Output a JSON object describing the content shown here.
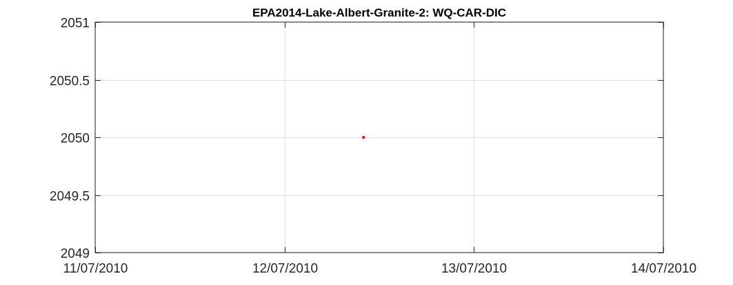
{
  "chart_data": {
    "type": "scatter",
    "title": "EPA2014-Lake-Albert-Granite-2: WQ-CAR-DIC",
    "xlabel": "",
    "ylabel": "",
    "x_type": "date",
    "xlim": [
      "11/07/2010",
      "14/07/2010"
    ],
    "ylim": [
      2049,
      2051
    ],
    "x_ticks": [
      "11/07/2010",
      "12/07/2010",
      "13/07/2010",
      "14/07/2010"
    ],
    "y_ticks": [
      2049,
      2049.5,
      2050,
      2050.5,
      2051
    ],
    "grid": true,
    "series": [
      {
        "color": "#ff0000",
        "points": [
          {
            "x": "12/07/2010 10:00",
            "y": 2050
          }
        ]
      }
    ]
  }
}
